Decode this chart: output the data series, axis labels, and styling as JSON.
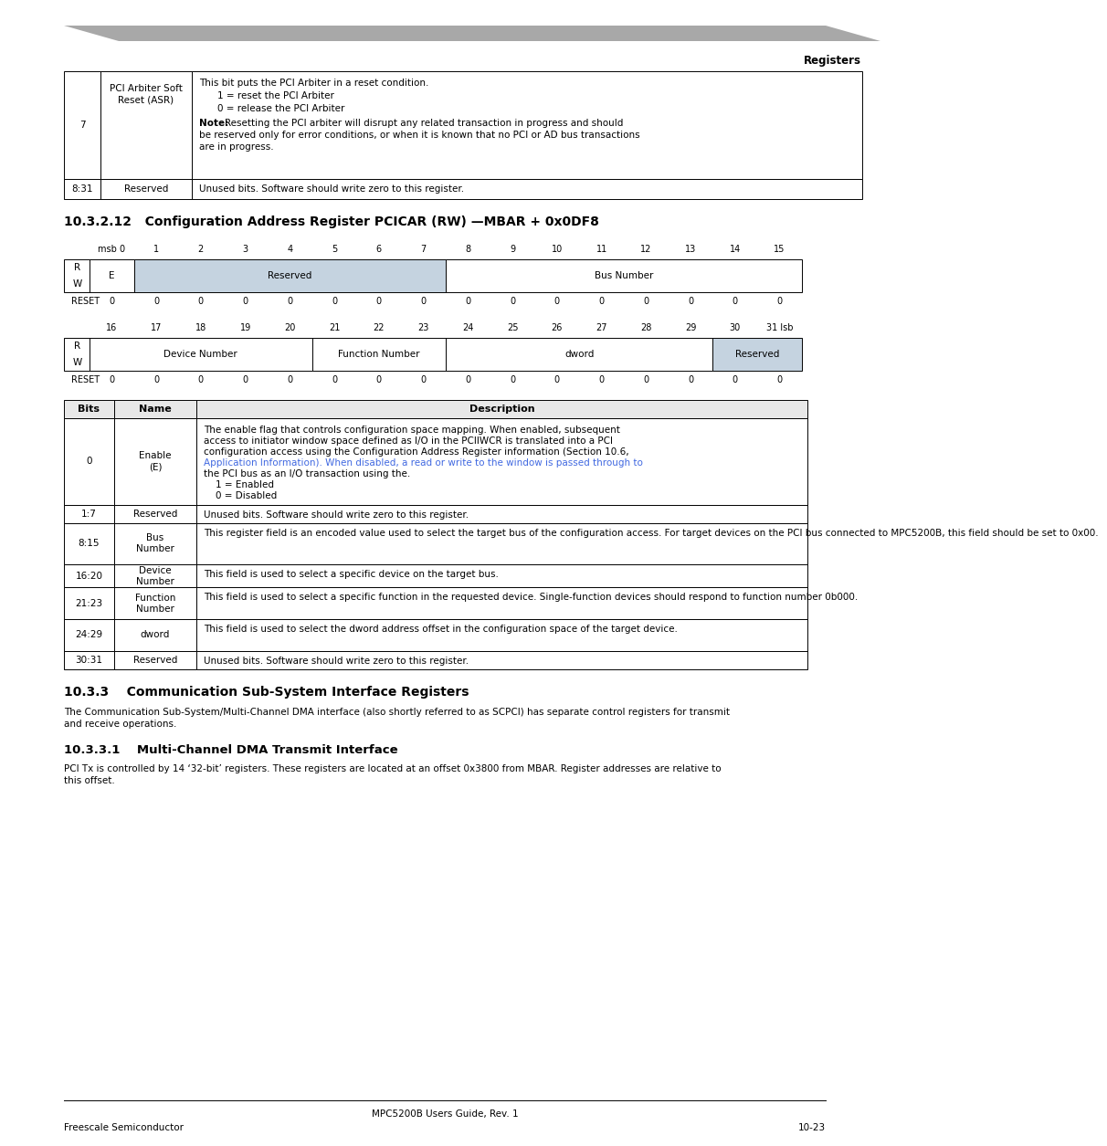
{
  "page_header_text": "Registers",
  "header_bar_color": "#a0a0a0",
  "section_title_1": "10.3.2.12   Configuration Address Register PCICAR (RW) —MBAR + 0x0DF8",
  "section_title_2": "10.3.3    Communication Sub-System Interface Registers",
  "section_title_3": "10.3.3.1    Multi-Channel DMA Transmit Interface",
  "footer_text": "MPC5200B Users Guide, Rev. 1",
  "footer_left": "Freescale Semiconductor",
  "footer_right": "10-23",
  "top_table_rows": [
    {
      "bits": "7",
      "name": "PCI Arbiter Soft\nReset (ASR)",
      "description": "This bit puts the PCI Arbiter in a reset condition.\n    1 = reset the PCI Arbiter\n    0 = release the PCI Arbiter\nNote:  Resetting the PCI arbiter will disrupt any related transaction in progress and should be reserved only for error conditions, or when it is known that no PCI or AD bus transactions are in progress."
    },
    {
      "bits": "8:31",
      "name": "Reserved",
      "description": "Unused bits. Software should write zero to this register."
    }
  ],
  "reg_bits_top": [
    "msb 0",
    "1",
    "2",
    "3",
    "4",
    "5",
    "6",
    "7",
    "8",
    "9",
    "10",
    "11",
    "12",
    "13",
    "14",
    "15"
  ],
  "reg_bits_bottom": [
    "16",
    "17",
    "18",
    "19",
    "20",
    "21",
    "22",
    "23",
    "24",
    "25",
    "26",
    "27",
    "28",
    "29",
    "30",
    "31 lsb"
  ],
  "reg_top_cells": [
    {
      "label": "E",
      "span": 1,
      "bg": "white"
    },
    {
      "label": "Reserved",
      "span": 7,
      "bg": "#c5d3e0"
    },
    {
      "label": "Bus Number",
      "span": 8,
      "bg": "white"
    }
  ],
  "reg_bottom_cells": [
    {
      "label": "Device Number",
      "span": 5,
      "bg": "white"
    },
    {
      "label": "Function Number",
      "span": 3,
      "bg": "white"
    },
    {
      "label": "dword",
      "span": 6,
      "bg": "white"
    },
    {
      "label": "Reserved",
      "span": 2,
      "bg": "#c5d3e0"
    }
  ],
  "bits_table_headers": [
    "Bits",
    "Name",
    "Description"
  ],
  "bits_table_rows": [
    {
      "bits": "0",
      "name": "Enable\n(E)",
      "description": "The enable flag that controls configuration space mapping. When enabled, subsequent access to initiator window space defined as I/O in the PCIIWCR is translated into a PCI configuration access using the Configuration Address Register information (Section 10.6, Application Information). When disabled, a read or write to the window is passed through to the PCI bus as an I/O transaction using the.\n    1 = Enabled\n    0 = Disabled"
    },
    {
      "bits": "1:7",
      "name": "Reserved",
      "description": "Unused bits. Software should write zero to this register."
    },
    {
      "bits": "8:15",
      "name": "Bus\nNumber",
      "description": "This register field is an encoded value used to select the target bus of the configuration access. For target devices on the PCI bus connected to MPC5200B, this field should be set to 0x00."
    },
    {
      "bits": "16:20",
      "name": "Device\nNumber",
      "description": "This field is used to select a specific device on the target bus."
    },
    {
      "bits": "21:23",
      "name": "Function\nNumber",
      "description": "This field is used to select a specific function in the requested device. Single-function devices should respond to function number 0b000."
    },
    {
      "bits": "24:29",
      "name": "dword",
      "description": "This field is used to select the dword address offset in the configuration space of the target device."
    },
    {
      "bits": "30:31",
      "name": "Reserved",
      "description": "Unused bits. Software should write zero to this register."
    }
  ],
  "section_333_body": "The Communication Sub-System/Multi-Channel DMA interface (also shortly referred to as SCPCI) has separate control registers for transmit\nand receive operations.",
  "section_3331_body": "PCI Tx is controlled by 14 ‘32-bit’ registers. These registers are located at an offset 0x3800 from MBAR. Register addresses are relative to\nthis offset.",
  "link_color": "#4169e1"
}
